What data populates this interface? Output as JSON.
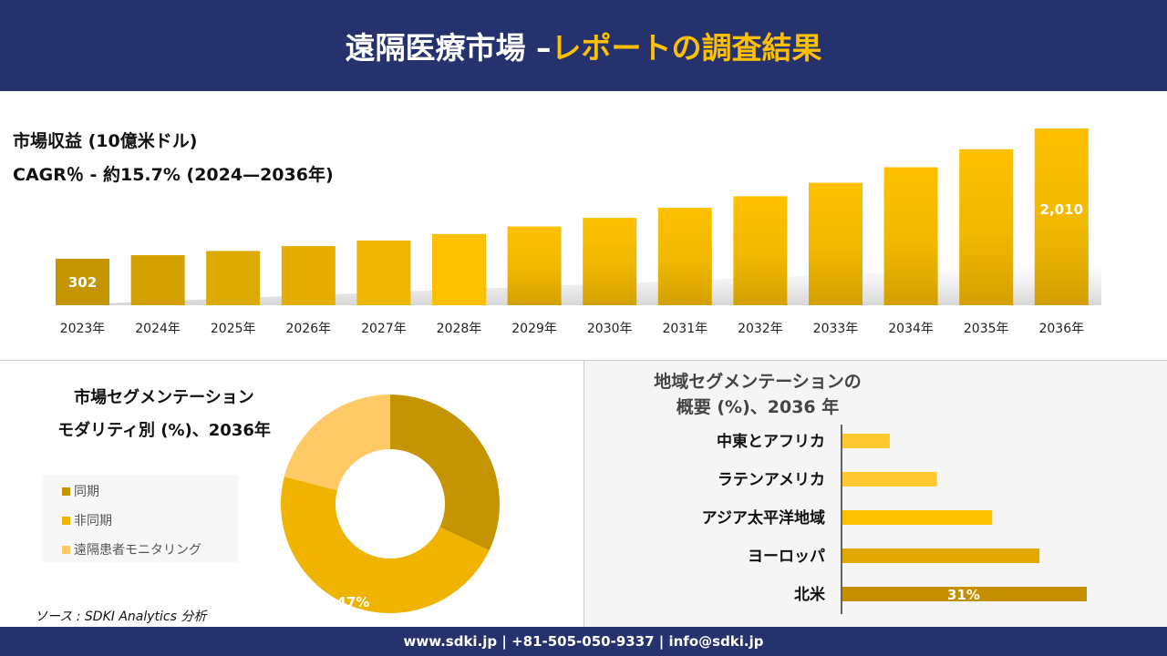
{
  "header": {
    "title_white": "遠隔医療市場 –",
    "title_yellow": "レポートの調査結果"
  },
  "revenue": {
    "title": "市場収益 (10億米ドル)",
    "cagr": "CAGR％ - 約15.7% (2024—2036年)"
  },
  "chart_data": [
    {
      "type": "bar",
      "title": "市場収益 (10億米ドル)",
      "categories": [
        "2023年",
        "2024年",
        "2025年",
        "2026年",
        "2027年",
        "2028年",
        "2029年",
        "2030年",
        "2031年",
        "2032年",
        "2033年",
        "2034年",
        "2035年",
        "2036年"
      ],
      "values": [
        302,
        349,
        404,
        468,
        541,
        626,
        725,
        838,
        970,
        1122,
        1298,
        1502,
        1738,
        2010
      ],
      "data_labels": {
        "0": "302",
        "13": "2,010"
      }
    },
    {
      "type": "pie",
      "title": "市場セグメンテーション モダリティ別 (%)、2036年",
      "categories": [
        "同期",
        "非同期",
        "遠隔患者モニタリング"
      ],
      "values": [
        32,
        47,
        21
      ],
      "colors": [
        "#c49500",
        "#f0b400",
        "#ffc966"
      ],
      "data_labels": {
        "1": "47%"
      },
      "legend": "left"
    },
    {
      "type": "bar",
      "orientation": "horizontal",
      "title": "地域セグメンテーションの概要 (%)、2036 年",
      "categories": [
        "中東とアフリカ",
        "ラテンアメリカ",
        "アジア太平洋地域",
        "ヨーロッパ",
        "北米"
      ],
      "values": [
        6,
        12,
        19,
        25,
        31
      ],
      "colors": [
        "#ffc82e",
        "#ffc82e",
        "#ffc000",
        "#e0a800",
        "#c49000"
      ],
      "data_labels": {
        "4": "31%"
      }
    }
  ],
  "segment": {
    "title1": "市場セグメンテーション",
    "title2": "モダリティ別 (%)、2036年"
  },
  "region": {
    "title1": "地域セグメンテーションの",
    "title2": "概要 (%)、2036 年"
  },
  "source": "ソース : SDKI Analytics 分析",
  "footer": "www.sdki.jp | +81-505-050-9337 | info@sdki.jp"
}
